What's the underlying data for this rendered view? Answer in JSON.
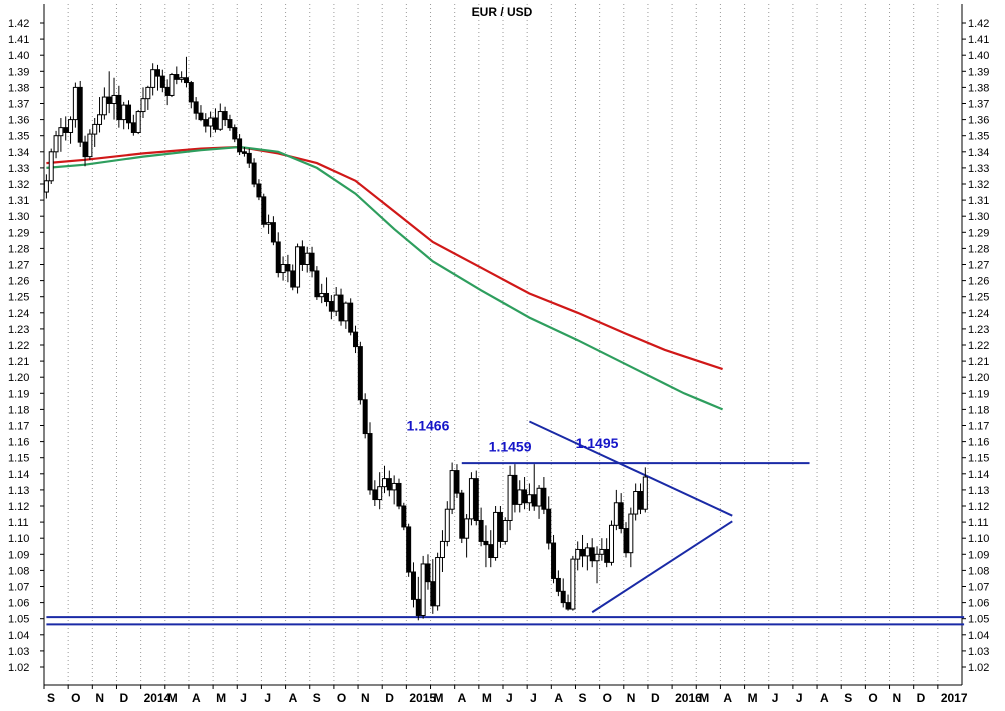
{
  "chart_data": {
    "type": "candlestick",
    "title": "EUR / USD",
    "xlabel": "",
    "ylabel": "",
    "ylim": [
      1.01,
      1.425
    ],
    "y_ticks": [
      "1.42",
      "1.41",
      "1.40",
      "1.39",
      "1.38",
      "1.37",
      "1.36",
      "1.35",
      "1.34",
      "1.33",
      "1.32",
      "1.31",
      "1.30",
      "1.29",
      "1.28",
      "1.27",
      "1.26",
      "1.25",
      "1.24",
      "1.23",
      "1.22",
      "1.21",
      "1.20",
      "1.19",
      "1.18",
      "1.17",
      "1.16",
      "1.15",
      "1.14",
      "1.13",
      "1.12",
      "1.11",
      "1.10",
      "1.09",
      "1.08",
      "1.07",
      "1.06",
      "1.05",
      "1.04",
      "1.03",
      "1.02"
    ],
    "x_labels": [
      "S",
      "O",
      "N",
      "D",
      "2014",
      "M",
      "A",
      "M",
      "J",
      "J",
      "A",
      "S",
      "O",
      "N",
      "D",
      "2015",
      "M",
      "A",
      "M",
      "J",
      "J",
      "A",
      "S",
      "O",
      "N",
      "D",
      "2016",
      "M",
      "A",
      "M",
      "J",
      "J",
      "A",
      "S",
      "O",
      "N",
      "D",
      "2017"
    ],
    "grid": "vertical dotted",
    "series": [
      {
        "type": "candlestick",
        "weeks": [
          {
            "o": 1.315,
            "h": 1.326,
            "l": 1.311,
            "c": 1.322
          },
          {
            "o": 1.322,
            "h": 1.342,
            "l": 1.32,
            "c": 1.34
          },
          {
            "o": 1.34,
            "h": 1.353,
            "l": 1.336,
            "c": 1.35
          },
          {
            "o": 1.35,
            "h": 1.361,
            "l": 1.34,
            "c": 1.355
          },
          {
            "o": 1.355,
            "h": 1.362,
            "l": 1.347,
            "c": 1.352
          },
          {
            "o": 1.352,
            "h": 1.362,
            "l": 1.345,
            "c": 1.36
          },
          {
            "o": 1.36,
            "h": 1.383,
            "l": 1.355,
            "c": 1.38
          },
          {
            "o": 1.38,
            "h": 1.384,
            "l": 1.343,
            "c": 1.346
          },
          {
            "o": 1.346,
            "h": 1.35,
            "l": 1.331,
            "c": 1.337
          },
          {
            "o": 1.337,
            "h": 1.354,
            "l": 1.335,
            "c": 1.351
          },
          {
            "o": 1.351,
            "h": 1.361,
            "l": 1.343,
            "c": 1.357
          },
          {
            "o": 1.357,
            "h": 1.374,
            "l": 1.352,
            "c": 1.363
          },
          {
            "o": 1.363,
            "h": 1.38,
            "l": 1.36,
            "c": 1.374
          },
          {
            "o": 1.374,
            "h": 1.39,
            "l": 1.364,
            "c": 1.37
          },
          {
            "o": 1.37,
            "h": 1.386,
            "l": 1.36,
            "c": 1.375
          },
          {
            "o": 1.375,
            "h": 1.381,
            "l": 1.355,
            "c": 1.36
          },
          {
            "o": 1.36,
            "h": 1.371,
            "l": 1.354,
            "c": 1.369
          },
          {
            "o": 1.369,
            "h": 1.372,
            "l": 1.354,
            "c": 1.358
          },
          {
            "o": 1.358,
            "h": 1.363,
            "l": 1.35,
            "c": 1.352
          },
          {
            "o": 1.352,
            "h": 1.366,
            "l": 1.351,
            "c": 1.365
          },
          {
            "o": 1.365,
            "h": 1.38,
            "l": 1.361,
            "c": 1.373
          },
          {
            "o": 1.373,
            "h": 1.381,
            "l": 1.366,
            "c": 1.38
          },
          {
            "o": 1.38,
            "h": 1.395,
            "l": 1.375,
            "c": 1.391
          },
          {
            "o": 1.391,
            "h": 1.394,
            "l": 1.378,
            "c": 1.387
          },
          {
            "o": 1.387,
            "h": 1.391,
            "l": 1.377,
            "c": 1.38
          },
          {
            "o": 1.38,
            "h": 1.385,
            "l": 1.369,
            "c": 1.375
          },
          {
            "o": 1.375,
            "h": 1.389,
            "l": 1.374,
            "c": 1.388
          },
          {
            "o": 1.388,
            "h": 1.393,
            "l": 1.382,
            "c": 1.385
          },
          {
            "o": 1.385,
            "h": 1.39,
            "l": 1.383,
            "c": 1.386
          },
          {
            "o": 1.386,
            "h": 1.399,
            "l": 1.38,
            "c": 1.383
          },
          {
            "o": 1.383,
            "h": 1.384,
            "l": 1.367,
            "c": 1.371
          },
          {
            "o": 1.371,
            "h": 1.374,
            "l": 1.36,
            "c": 1.364
          },
          {
            "o": 1.364,
            "h": 1.369,
            "l": 1.359,
            "c": 1.36
          },
          {
            "o": 1.36,
            "h": 1.364,
            "l": 1.352,
            "c": 1.356
          },
          {
            "o": 1.356,
            "h": 1.365,
            "l": 1.349,
            "c": 1.361
          },
          {
            "o": 1.361,
            "h": 1.367,
            "l": 1.352,
            "c": 1.354
          },
          {
            "o": 1.354,
            "h": 1.37,
            "l": 1.353,
            "c": 1.365
          },
          {
            "o": 1.365,
            "h": 1.368,
            "l": 1.356,
            "c": 1.36
          },
          {
            "o": 1.36,
            "h": 1.363,
            "l": 1.353,
            "c": 1.355
          },
          {
            "o": 1.355,
            "h": 1.357,
            "l": 1.346,
            "c": 1.348
          },
          {
            "o": 1.348,
            "h": 1.351,
            "l": 1.338,
            "c": 1.34
          },
          {
            "o": 1.34,
            "h": 1.343,
            "l": 1.337,
            "c": 1.339
          },
          {
            "o": 1.339,
            "h": 1.342,
            "l": 1.33,
            "c": 1.333
          },
          {
            "o": 1.333,
            "h": 1.336,
            "l": 1.318,
            "c": 1.32
          },
          {
            "o": 1.32,
            "h": 1.323,
            "l": 1.31,
            "c": 1.312
          },
          {
            "o": 1.312,
            "h": 1.314,
            "l": 1.293,
            "c": 1.295
          },
          {
            "o": 1.295,
            "h": 1.301,
            "l": 1.289,
            "c": 1.296
          },
          {
            "o": 1.296,
            "h": 1.3,
            "l": 1.282,
            "c": 1.284
          },
          {
            "o": 1.284,
            "h": 1.29,
            "l": 1.262,
            "c": 1.265
          },
          {
            "o": 1.265,
            "h": 1.275,
            "l": 1.26,
            "c": 1.27
          },
          {
            "o": 1.27,
            "h": 1.276,
            "l": 1.259,
            "c": 1.266
          },
          {
            "o": 1.266,
            "h": 1.27,
            "l": 1.254,
            "c": 1.256
          },
          {
            "o": 1.256,
            "h": 1.283,
            "l": 1.252,
            "c": 1.281
          },
          {
            "o": 1.281,
            "h": 1.285,
            "l": 1.266,
            "c": 1.27
          },
          {
            "o": 1.27,
            "h": 1.281,
            "l": 1.265,
            "c": 1.277
          },
          {
            "o": 1.277,
            "h": 1.281,
            "l": 1.262,
            "c": 1.266
          },
          {
            "o": 1.266,
            "h": 1.269,
            "l": 1.248,
            "c": 1.25
          },
          {
            "o": 1.25,
            "h": 1.258,
            "l": 1.246,
            "c": 1.252
          },
          {
            "o": 1.252,
            "h": 1.262,
            "l": 1.244,
            "c": 1.247
          },
          {
            "o": 1.247,
            "h": 1.251,
            "l": 1.236,
            "c": 1.241
          },
          {
            "o": 1.241,
            "h": 1.256,
            "l": 1.238,
            "c": 1.251
          },
          {
            "o": 1.251,
            "h": 1.255,
            "l": 1.232,
            "c": 1.235
          },
          {
            "o": 1.235,
            "h": 1.247,
            "l": 1.23,
            "c": 1.246
          },
          {
            "o": 1.246,
            "h": 1.249,
            "l": 1.226,
            "c": 1.228
          },
          {
            "o": 1.228,
            "h": 1.232,
            "l": 1.215,
            "c": 1.219
          },
          {
            "o": 1.219,
            "h": 1.222,
            "l": 1.183,
            "c": 1.186
          },
          {
            "o": 1.186,
            "h": 1.19,
            "l": 1.162,
            "c": 1.165
          },
          {
            "o": 1.165,
            "h": 1.172,
            "l": 1.127,
            "c": 1.13
          },
          {
            "o": 1.13,
            "h": 1.136,
            "l": 1.12,
            "c": 1.124
          },
          {
            "o": 1.124,
            "h": 1.141,
            "l": 1.118,
            "c": 1.132
          },
          {
            "o": 1.132,
            "h": 1.145,
            "l": 1.128,
            "c": 1.137
          },
          {
            "o": 1.137,
            "h": 1.142,
            "l": 1.126,
            "c": 1.13
          },
          {
            "o": 1.13,
            "h": 1.139,
            "l": 1.121,
            "c": 1.134
          },
          {
            "o": 1.134,
            "h": 1.137,
            "l": 1.118,
            "c": 1.12
          },
          {
            "o": 1.12,
            "h": 1.122,
            "l": 1.105,
            "c": 1.107
          },
          {
            "o": 1.107,
            "h": 1.109,
            "l": 1.076,
            "c": 1.079
          },
          {
            "o": 1.079,
            "h": 1.085,
            "l": 1.057,
            "c": 1.062
          },
          {
            "o": 1.062,
            "h": 1.076,
            "l": 1.049,
            "c": 1.052
          },
          {
            "o": 1.052,
            "h": 1.089,
            "l": 1.05,
            "c": 1.084
          },
          {
            "o": 1.084,
            "h": 1.09,
            "l": 1.068,
            "c": 1.073
          },
          {
            "o": 1.073,
            "h": 1.087,
            "l": 1.053,
            "c": 1.058
          },
          {
            "o": 1.058,
            "h": 1.091,
            "l": 1.055,
            "c": 1.088
          },
          {
            "o": 1.088,
            "h": 1.105,
            "l": 1.079,
            "c": 1.098
          },
          {
            "o": 1.098,
            "h": 1.123,
            "l": 1.095,
            "c": 1.118
          },
          {
            "o": 1.118,
            "h": 1.147,
            "l": 1.115,
            "c": 1.142
          },
          {
            "o": 1.142,
            "h": 1.146,
            "l": 1.125,
            "c": 1.128
          },
          {
            "o": 1.128,
            "h": 1.13,
            "l": 1.097,
            "c": 1.1
          },
          {
            "o": 1.1,
            "h": 1.115,
            "l": 1.088,
            "c": 1.112
          },
          {
            "o": 1.112,
            "h": 1.141,
            "l": 1.108,
            "c": 1.137
          },
          {
            "o": 1.137,
            "h": 1.142,
            "l": 1.108,
            "c": 1.111
          },
          {
            "o": 1.111,
            "h": 1.119,
            "l": 1.095,
            "c": 1.098
          },
          {
            "o": 1.098,
            "h": 1.108,
            "l": 1.082,
            "c": 1.096
          },
          {
            "o": 1.096,
            "h": 1.105,
            "l": 1.082,
            "c": 1.088
          },
          {
            "o": 1.088,
            "h": 1.12,
            "l": 1.086,
            "c": 1.116
          },
          {
            "o": 1.116,
            "h": 1.12,
            "l": 1.094,
            "c": 1.098
          },
          {
            "o": 1.098,
            "h": 1.113,
            "l": 1.096,
            "c": 1.111
          },
          {
            "o": 1.111,
            "h": 1.145,
            "l": 1.105,
            "c": 1.139
          },
          {
            "o": 1.139,
            "h": 1.146,
            "l": 1.116,
            "c": 1.121
          },
          {
            "o": 1.121,
            "h": 1.136,
            "l": 1.116,
            "c": 1.13
          },
          {
            "o": 1.13,
            "h": 1.138,
            "l": 1.118,
            "c": 1.122
          },
          {
            "o": 1.122,
            "h": 1.134,
            "l": 1.117,
            "c": 1.127
          },
          {
            "o": 1.127,
            "h": 1.146,
            "l": 1.117,
            "c": 1.12
          },
          {
            "o": 1.12,
            "h": 1.133,
            "l": 1.112,
            "c": 1.131
          },
          {
            "o": 1.131,
            "h": 1.138,
            "l": 1.115,
            "c": 1.118
          },
          {
            "o": 1.118,
            "h": 1.126,
            "l": 1.093,
            "c": 1.097
          },
          {
            "o": 1.097,
            "h": 1.102,
            "l": 1.072,
            "c": 1.075
          },
          {
            "o": 1.075,
            "h": 1.08,
            "l": 1.064,
            "c": 1.067
          },
          {
            "o": 1.067,
            "h": 1.075,
            "l": 1.057,
            "c": 1.06
          },
          {
            "o": 1.06,
            "h": 1.065,
            "l": 1.055,
            "c": 1.056
          },
          {
            "o": 1.056,
            "h": 1.089,
            "l": 1.055,
            "c": 1.087
          },
          {
            "o": 1.087,
            "h": 1.098,
            "l": 1.08,
            "c": 1.093
          },
          {
            "o": 1.093,
            "h": 1.102,
            "l": 1.082,
            "c": 1.089
          },
          {
            "o": 1.089,
            "h": 1.097,
            "l": 1.08,
            "c": 1.094
          },
          {
            "o": 1.094,
            "h": 1.1,
            "l": 1.082,
            "c": 1.086
          },
          {
            "o": 1.086,
            "h": 1.095,
            "l": 1.072,
            "c": 1.09
          },
          {
            "o": 1.09,
            "h": 1.1,
            "l": 1.086,
            "c": 1.093
          },
          {
            "o": 1.093,
            "h": 1.1,
            "l": 1.082,
            "c": 1.085
          },
          {
            "o": 1.085,
            "h": 1.111,
            "l": 1.083,
            "c": 1.108
          },
          {
            "o": 1.108,
            "h": 1.13,
            "l": 1.105,
            "c": 1.122
          },
          {
            "o": 1.122,
            "h": 1.128,
            "l": 1.103,
            "c": 1.106
          },
          {
            "o": 1.106,
            "h": 1.11,
            "l": 1.088,
            "c": 1.091
          },
          {
            "o": 1.091,
            "h": 1.119,
            "l": 1.082,
            "c": 1.115
          },
          {
            "o": 1.115,
            "h": 1.134,
            "l": 1.111,
            "c": 1.129
          },
          {
            "o": 1.129,
            "h": 1.134,
            "l": 1.115,
            "c": 1.118
          },
          {
            "o": 1.118,
            "h": 1.144,
            "l": 1.116,
            "c": 1.138
          }
        ]
      },
      {
        "type": "line",
        "color": "#d01818",
        "points": [
          [
            0,
            1.333
          ],
          [
            8,
            1.335
          ],
          [
            20,
            1.339
          ],
          [
            32,
            1.342
          ],
          [
            40,
            1.343
          ],
          [
            48,
            1.339
          ],
          [
            56,
            1.333
          ],
          [
            64,
            1.322
          ],
          [
            72,
            1.303
          ],
          [
            80,
            1.284
          ],
          [
            90,
            1.268
          ],
          [
            100,
            1.252
          ],
          [
            110,
            1.24
          ],
          [
            120,
            1.227
          ],
          [
            128,
            1.217
          ],
          [
            132,
            1.213
          ],
          [
            136,
            1.209
          ],
          [
            140,
            1.205
          ]
        ]
      },
      {
        "type": "line",
        "color": "#2e9e5e",
        "points": [
          [
            0,
            1.33
          ],
          [
            8,
            1.332
          ],
          [
            20,
            1.337
          ],
          [
            32,
            1.341
          ],
          [
            40,
            1.343
          ],
          [
            48,
            1.34
          ],
          [
            56,
            1.33
          ],
          [
            64,
            1.314
          ],
          [
            72,
            1.292
          ],
          [
            80,
            1.272
          ],
          [
            90,
            1.254
          ],
          [
            100,
            1.237
          ],
          [
            110,
            1.223
          ],
          [
            120,
            1.208
          ],
          [
            128,
            1.196
          ],
          [
            132,
            1.19
          ],
          [
            136,
            1.185
          ],
          [
            140,
            1.18
          ]
        ]
      }
    ],
    "annotations": [
      {
        "text": "1.1466",
        "x": 79,
        "y": 1.167
      },
      {
        "text": "1.1459",
        "x": 96,
        "y": 1.154
      },
      {
        "text": "1.1495",
        "x": 114,
        "y": 1.156
      }
    ],
    "trend_lines": {
      "color": "#1a2aa6",
      "resistance": {
        "from": [
          86,
          1.1466
        ],
        "to": [
          158,
          1.1466
        ]
      },
      "support_1": {
        "from": [
          0,
          1.051
        ],
        "to": [
          190,
          1.051
        ]
      },
      "support_2": {
        "from": [
          0,
          1.0465
        ],
        "to": [
          190,
          1.0465
        ]
      },
      "triangle_upper": {
        "from": [
          100,
          1.1725
        ],
        "to": [
          142,
          1.114
        ]
      },
      "triangle_lower": {
        "from": [
          113,
          1.054
        ],
        "to": [
          142,
          1.1105
        ]
      }
    }
  }
}
